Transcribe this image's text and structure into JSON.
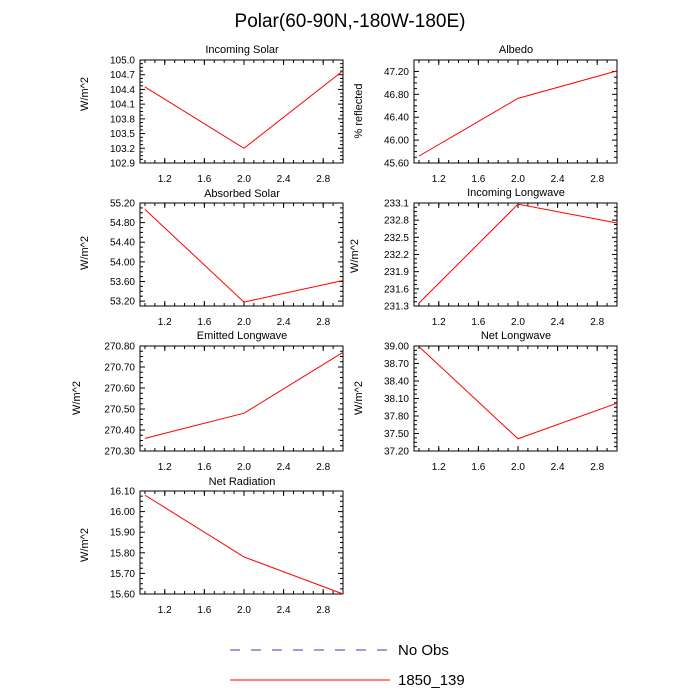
{
  "figure": {
    "title": "Polar(60-90N,-180W-180E)"
  },
  "legend": {
    "entries": [
      {
        "label": "No Obs",
        "color": "#3b3bb0",
        "dashed": true
      },
      {
        "label": "1850_139",
        "color": "#ff0000",
        "dashed": false
      }
    ]
  },
  "chart_data": [
    {
      "type": "line",
      "title": "Incoming Solar",
      "ylabel": "W/m^2",
      "x": [
        1,
        2,
        3
      ],
      "series": [
        {
          "name": "1850_139",
          "values": [
            104.45,
            103.2,
            104.78
          ],
          "color": "#ff0000"
        }
      ],
      "xlim": [
        0.95,
        3.0
      ],
      "ylim": [
        102.9,
        105.0
      ],
      "xticks": [
        1.2,
        1.6,
        2.0,
        2.4,
        2.8
      ],
      "xticklabels": [
        "1.2",
        "1.6",
        "2.0",
        "2.4",
        "2.8"
      ],
      "yticks": [
        102.9,
        103.2,
        103.5,
        103.8,
        104.1,
        104.4,
        104.7,
        105.0
      ],
      "yticklabels": [
        "102.9",
        "103.2",
        "103.5",
        "103.8",
        "104.1",
        "104.4",
        "104.7",
        "105.0"
      ],
      "grid": false
    },
    {
      "type": "line",
      "title": "Albedo",
      "ylabel": "% reflected",
      "x": [
        1,
        2,
        3
      ],
      "series": [
        {
          "name": "1850_139",
          "values": [
            45.72,
            46.73,
            47.21
          ],
          "color": "#ff0000"
        }
      ],
      "xlim": [
        0.95,
        3.0
      ],
      "ylim": [
        45.6,
        47.4
      ],
      "xticks": [
        1.2,
        1.6,
        2.0,
        2.4,
        2.8
      ],
      "xticklabels": [
        "1.2",
        "1.6",
        "2.0",
        "2.4",
        "2.8"
      ],
      "yticks": [
        45.6,
        46.0,
        46.4,
        46.8,
        47.2
      ],
      "yticklabels": [
        "45.60",
        "46.00",
        "46.40",
        "46.80",
        "47.20"
      ],
      "grid": false
    },
    {
      "type": "line",
      "title": "Absorbed Solar",
      "ylabel": "W/m^2",
      "x": [
        1,
        2,
        3
      ],
      "series": [
        {
          "name": "1850_139",
          "values": [
            55.07,
            53.18,
            53.62
          ],
          "color": "#ff0000"
        }
      ],
      "xlim": [
        0.95,
        3.0
      ],
      "ylim": [
        53.1,
        55.2
      ],
      "xticks": [
        1.2,
        1.6,
        2.0,
        2.4,
        2.8
      ],
      "xticklabels": [
        "1.2",
        "1.6",
        "2.0",
        "2.4",
        "2.8"
      ],
      "yticks": [
        53.2,
        53.6,
        54.0,
        54.4,
        54.8,
        55.2
      ],
      "yticklabels": [
        "53.20",
        "53.60",
        "54.00",
        "54.40",
        "54.80",
        "55.20"
      ],
      "grid": false
    },
    {
      "type": "line",
      "title": "Incoming Longwave",
      "ylabel": "W/m^2",
      "x": [
        1,
        2,
        3
      ],
      "series": [
        {
          "name": "1850_139",
          "values": [
            231.35,
            233.08,
            232.75
          ],
          "color": "#ff0000"
        }
      ],
      "xlim": [
        0.95,
        3.0
      ],
      "ylim": [
        231.3,
        233.1
      ],
      "xticks": [
        1.2,
        1.6,
        2.0,
        2.4,
        2.8
      ],
      "xticklabels": [
        "1.2",
        "1.6",
        "2.0",
        "2.4",
        "2.8"
      ],
      "yticks": [
        231.3,
        231.6,
        231.9,
        232.2,
        232.5,
        232.8,
        233.1
      ],
      "yticklabels": [
        "231.3",
        "231.6",
        "231.9",
        "232.2",
        "232.5",
        "232.8",
        "233.1"
      ],
      "grid": false
    },
    {
      "type": "line",
      "title": "Emitted Longwave",
      "ylabel": "W/m^2",
      "x": [
        1,
        2,
        3
      ],
      "series": [
        {
          "name": "1850_139",
          "values": [
            270.36,
            270.48,
            270.77
          ],
          "color": "#ff0000"
        }
      ],
      "xlim": [
        0.95,
        3.0
      ],
      "ylim": [
        270.3,
        270.8
      ],
      "xticks": [
        1.2,
        1.6,
        2.0,
        2.4,
        2.8
      ],
      "xticklabels": [
        "1.2",
        "1.6",
        "2.0",
        "2.4",
        "2.8"
      ],
      "yticks": [
        270.3,
        270.4,
        270.5,
        270.6,
        270.7,
        270.8
      ],
      "yticklabels": [
        "270.30",
        "270.40",
        "270.50",
        "270.60",
        "270.70",
        "270.80"
      ],
      "grid": false
    },
    {
      "type": "line",
      "title": "Net Longwave",
      "ylabel": "W/m^2",
      "x": [
        1,
        2,
        3
      ],
      "series": [
        {
          "name": "1850_139",
          "values": [
            38.99,
            37.41,
            38.02
          ],
          "color": "#ff0000"
        }
      ],
      "xlim": [
        0.95,
        3.0
      ],
      "ylim": [
        37.2,
        39.0
      ],
      "xticks": [
        1.2,
        1.6,
        2.0,
        2.4,
        2.8
      ],
      "xticklabels": [
        "1.2",
        "1.6",
        "2.0",
        "2.4",
        "2.8"
      ],
      "yticks": [
        37.2,
        37.5,
        37.8,
        38.1,
        38.4,
        38.7,
        39.0
      ],
      "yticklabels": [
        "37.20",
        "37.50",
        "37.80",
        "38.10",
        "38.40",
        "38.70",
        "39.00"
      ],
      "grid": false
    },
    {
      "type": "line",
      "title": "Net Radiation",
      "ylabel": "W/m^2",
      "x": [
        1,
        2,
        3
      ],
      "series": [
        {
          "name": "1850_139",
          "values": [
            16.08,
            15.78,
            15.6
          ],
          "color": "#ff0000"
        }
      ],
      "xlim": [
        0.95,
        3.0
      ],
      "ylim": [
        15.6,
        16.1
      ],
      "xticks": [
        1.2,
        1.6,
        2.0,
        2.4,
        2.8
      ],
      "xticklabels": [
        "1.2",
        "1.6",
        "2.0",
        "2.4",
        "2.8"
      ],
      "yticks": [
        15.6,
        15.7,
        15.8,
        15.9,
        16.0,
        16.1
      ],
      "yticklabels": [
        "15.60",
        "15.70",
        "15.80",
        "15.90",
        "16.00",
        "16.10"
      ],
      "grid": false
    }
  ]
}
